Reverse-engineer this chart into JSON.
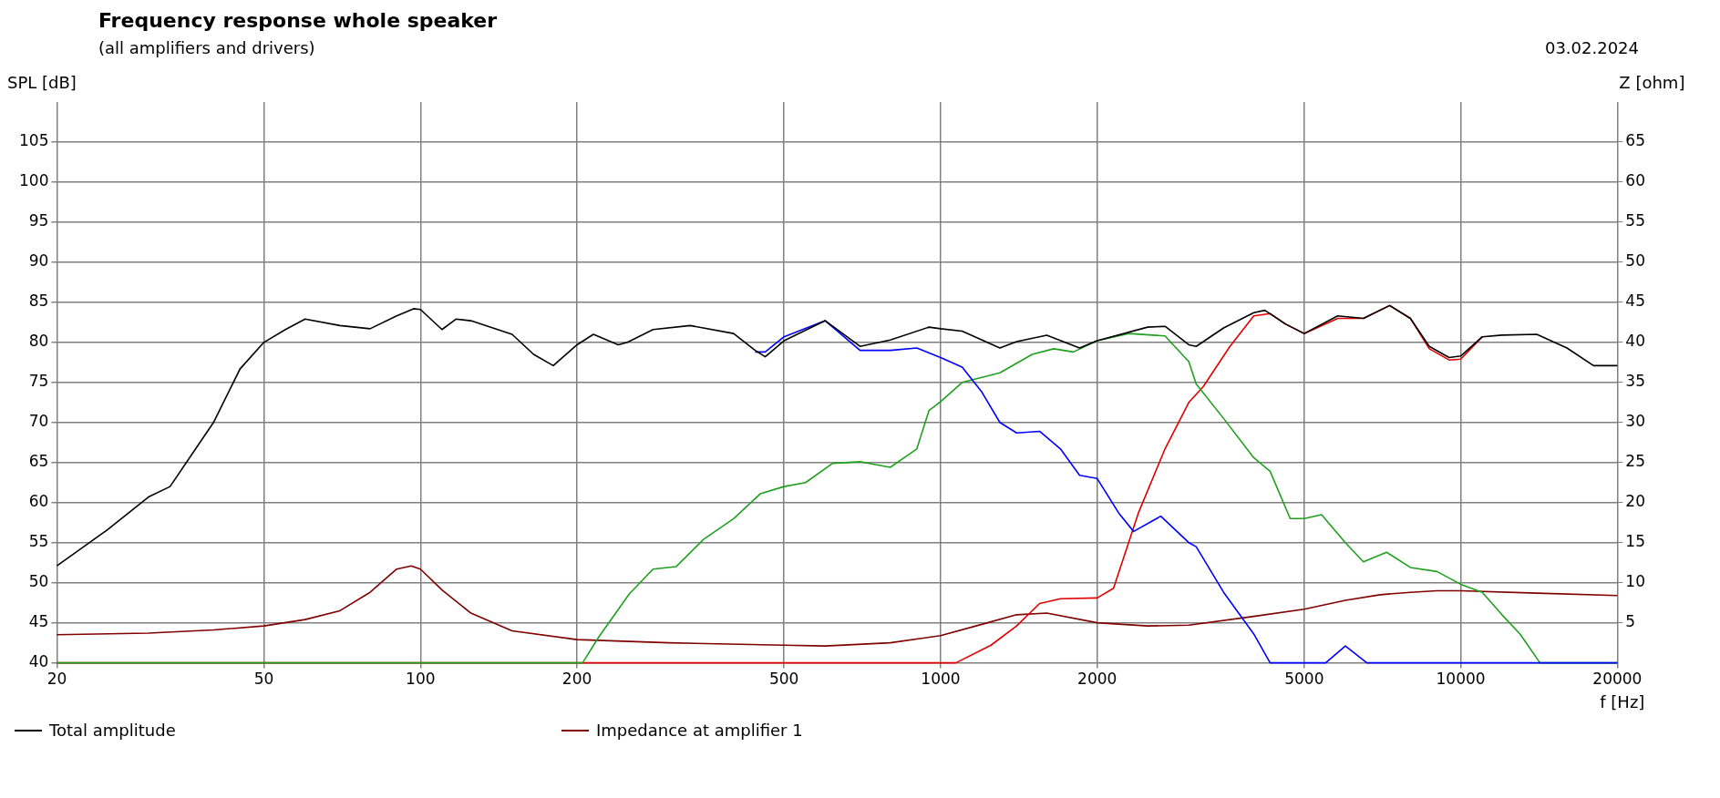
{
  "chart_data": {
    "type": "line",
    "title": "Frequency response whole speaker",
    "subtitle": "(all amplifiers and drivers)",
    "annotations": [
      "03.02.2024"
    ],
    "xlabel": "f [Hz]",
    "ylabel": "SPL [dB]",
    "y2label": "Z [ohm]",
    "log": "x",
    "grid": true,
    "legend": "bottom",
    "marker": "none",
    "line_style": "solid",
    "xlim": [
      20,
      20000
    ],
    "xticks": [
      20,
      50,
      100,
      200,
      500,
      1000,
      2000,
      5000,
      10000,
      20000
    ],
    "ylim": [
      40,
      110
    ],
    "yticks": [
      40,
      45,
      50,
      55,
      60,
      65,
      70,
      75,
      80,
      85,
      90,
      95,
      100,
      105
    ],
    "y2lim": [
      0,
      70
    ],
    "y2ticks": [
      5,
      10,
      15,
      20,
      25,
      30,
      35,
      40,
      45,
      50,
      55,
      60,
      65
    ],
    "series": [
      {
        "name": "Total amplitude",
        "color": "#000000",
        "x": [
          20,
          25,
          30,
          33,
          40,
          45,
          50,
          55,
          60,
          70,
          80,
          90,
          97,
          100,
          110,
          117,
          125,
          150,
          165,
          180,
          200,
          215,
          240,
          250,
          280,
          330,
          400,
          440,
          460,
          500,
          600,
          700,
          800,
          950,
          1000,
          1100,
          1300,
          1400,
          1600,
          1850,
          2000,
          2500,
          2700,
          3000,
          3100,
          3500,
          4000,
          4200,
          4600,
          5000,
          5800,
          6500,
          7300,
          8000,
          8700,
          9500,
          10000,
          11000,
          12000,
          14000,
          16000,
          18000,
          20000
        ],
        "values": [
          52.1,
          56.6,
          60.7,
          62.0,
          70.0,
          76.7,
          80.0,
          81.6,
          82.9,
          82.1,
          81.7,
          83.3,
          84.2,
          84.1,
          81.6,
          82.9,
          82.7,
          81.0,
          78.5,
          77.1,
          79.7,
          81.0,
          79.7,
          80.0,
          81.6,
          82.1,
          81.1,
          79.0,
          78.2,
          80.2,
          82.7,
          79.5,
          80.3,
          81.9,
          81.7,
          81.4,
          79.3,
          80.1,
          80.9,
          79.3,
          80.2,
          81.9,
          82.0,
          79.7,
          79.5,
          81.8,
          83.7,
          84.0,
          82.3,
          81.1,
          83.3,
          83.0,
          84.6,
          83.0,
          79.5,
          78.1,
          78.3,
          80.7,
          80.9,
          81.0,
          79.3,
          77.1,
          77.1
        ]
      },
      {
        "color": "#0000ff",
        "x": [
          440,
          460,
          500,
          600,
          700,
          800,
          900,
          1000,
          1100,
          1200,
          1300,
          1400,
          1550,
          1700,
          1850,
          2000,
          2200,
          2350,
          2650,
          3000,
          3100,
          3500,
          4000,
          4300,
          5500,
          6000,
          6600,
          20000
        ],
        "values": [
          78.8,
          78.8,
          80.7,
          82.7,
          79.0,
          79.0,
          79.3,
          78.1,
          76.9,
          73.8,
          70.0,
          68.7,
          68.9,
          66.7,
          63.4,
          63.0,
          58.7,
          56.4,
          58.3,
          55.0,
          54.5,
          48.8,
          43.6,
          40,
          40,
          42.1,
          40,
          40
        ]
      },
      {
        "color": "#1fa01f",
        "x": [
          20,
          205,
          220,
          252,
          280,
          310,
          350,
          400,
          450,
          500,
          550,
          620,
          700,
          800,
          900,
          950,
          1000,
          1100,
          1300,
          1500,
          1650,
          1800,
          2000,
          2300,
          2700,
          3000,
          3100,
          3500,
          4000,
          4300,
          4700,
          5000,
          5400,
          6000,
          6500,
          7200,
          8000,
          9000,
          10000,
          11000,
          12000,
          13000,
          14200,
          20000
        ],
        "values": [
          40,
          40,
          43.2,
          48.6,
          51.7,
          52.0,
          55.4,
          58.0,
          61.1,
          62.0,
          62.5,
          64.9,
          65.1,
          64.4,
          66.7,
          71.5,
          72.6,
          75.0,
          76.2,
          78.5,
          79.2,
          78.8,
          80.2,
          81.1,
          80.8,
          77.6,
          74.8,
          70.5,
          65.6,
          63.9,
          58.0,
          58.0,
          58.5,
          55.0,
          52.6,
          53.8,
          51.9,
          51.4,
          49.8,
          48.8,
          46.0,
          43.6,
          40,
          40
        ]
      },
      {
        "color": "#e00000",
        "x": [
          20,
          1070,
          1250,
          1400,
          1550,
          1700,
          2000,
          2150,
          2400,
          2700,
          3000,
          3200,
          3600,
          4000,
          4300,
          4600,
          5000,
          5800,
          6500,
          7300,
          8000,
          8700,
          9500,
          10000,
          11000
        ],
        "values": [
          40,
          40,
          42.2,
          44.6,
          47.4,
          48.0,
          48.1,
          49.3,
          58.7,
          66.7,
          72.5,
          74.5,
          79.5,
          83.3,
          83.6,
          82.3,
          81.1,
          83.0,
          83.0,
          84.6,
          83.0,
          79.2,
          77.8,
          77.9,
          80.7
        ]
      },
      {
        "name": "Impedance at amplifier 1",
        "color": "#800000",
        "axis": "y2",
        "x": [
          20,
          30,
          40,
          50,
          60,
          70,
          80,
          90,
          96,
          100,
          110,
          125,
          150,
          200,
          300,
          500,
          600,
          800,
          1000,
          1200,
          1400,
          1600,
          2000,
          2500,
          3000,
          4000,
          5000,
          6000,
          7000,
          8000,
          9000,
          10000,
          14000,
          20000
        ],
        "values": [
          3.5,
          3.7,
          4.1,
          4.6,
          5.4,
          6.5,
          8.8,
          11.7,
          12.1,
          11.7,
          9.1,
          6.2,
          4.0,
          2.9,
          2.5,
          2.2,
          2.1,
          2.5,
          3.4,
          4.8,
          6.0,
          6.2,
          5.0,
          4.6,
          4.7,
          5.8,
          6.7,
          7.8,
          8.5,
          8.8,
          9.0,
          9.0,
          8.7,
          8.4
        ]
      }
    ]
  }
}
